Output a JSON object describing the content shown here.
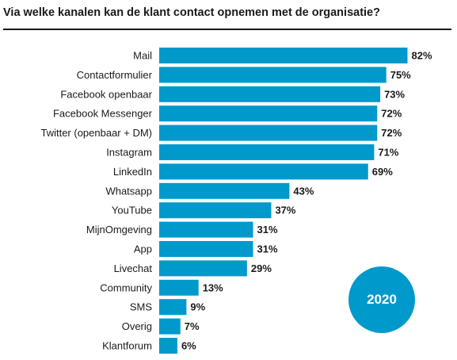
{
  "header": {
    "title": "Via welke kanalen kan de klant contact opnemen met de organisatie?"
  },
  "badge": {
    "year": "2020"
  },
  "colors": {
    "bar": "#0099cc",
    "text": "#1a1a1a",
    "badge": "#0099cc"
  },
  "chart_data": {
    "type": "bar",
    "orientation": "horizontal",
    "title": "Via welke kanalen kan de klant contact opnemen met de organisatie?",
    "xlabel": "",
    "ylabel": "",
    "xlim": [
      0,
      100
    ],
    "grid": false,
    "legend": "none",
    "value_suffix": "%",
    "categories": [
      "Mail",
      "Contactformulier",
      "Facebook openbaar",
      "Facebook Messenger",
      "Twitter (openbaar + DM)",
      "Instagram",
      "LinkedIn",
      "Whatsapp",
      "YouTube",
      "MijnOmgeving",
      "App",
      "Livechat",
      "Community",
      "SMS",
      "Overig",
      "Klantforum"
    ],
    "values": [
      82,
      75,
      73,
      72,
      72,
      71,
      69,
      43,
      37,
      31,
      31,
      29,
      13,
      9,
      7,
      6
    ]
  }
}
